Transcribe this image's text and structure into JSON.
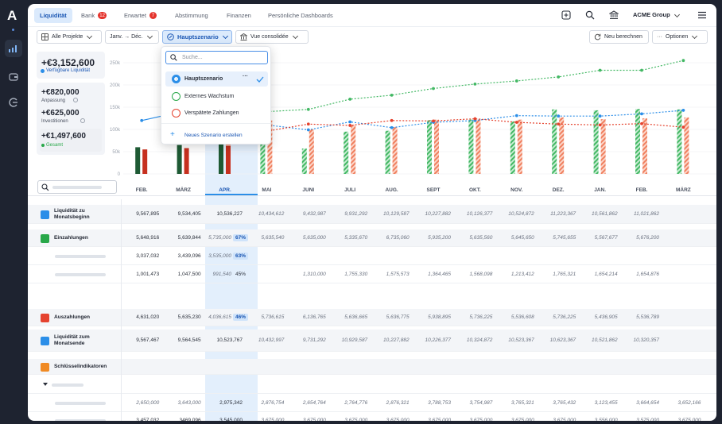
{
  "app": {
    "logo": "A",
    "org": "ACME Group"
  },
  "tabs": [
    {
      "label": "Liquidität"
    },
    {
      "label": "Bank",
      "badge": "12"
    },
    {
      "label": "Erwartet",
      "badge": "7"
    },
    {
      "label": "Abstimmung"
    },
    {
      "label": "Finanzen"
    },
    {
      "label": "Persönliche Dashboards"
    }
  ],
  "filters": {
    "projects": "Alle Projekte",
    "range": "Janv. → Déc.",
    "scenario": "Hauptszenario",
    "view": "Vue consolidée",
    "recalc": "Neu berechnen",
    "options": "Optionen"
  },
  "kpis": {
    "available": {
      "value": "+€3,152,600",
      "label": "Verfügbare Liquidität"
    },
    "adjust": {
      "value": "+€820,000",
      "label": "Anpassung"
    },
    "invest": {
      "value": "+€625,000",
      "label": "Investitionen"
    },
    "total": {
      "value": "+€1,497,600",
      "label": "Gesamt"
    }
  },
  "dropdown": {
    "placeholder": "Suche...",
    "options": [
      "Hauptszenario",
      "Externes Wachstum",
      "Verspätete Zahlungen"
    ],
    "more": "···",
    "create": "Neues Szenario erstellen"
  },
  "chart_data": {
    "type": "bar",
    "yticks": [
      "250k",
      "200k",
      "150k",
      "100k",
      "50k",
      "0"
    ],
    "ylim": [
      0,
      250000
    ],
    "categories": [
      "FEB.",
      "MÄRZ",
      "APR.",
      "MAI",
      "JUNI",
      "JULI",
      "AUG.",
      "SEPT",
      "OKT.",
      "NOV.",
      "DEZ.",
      "JAN.",
      "FEB.",
      "MÄRZ"
    ],
    "current_index": 2,
    "series": [
      {
        "values": [
          60000,
          65000,
          68000,
          70000,
          57000,
          95000,
          97000,
          121000,
          122000,
          118000,
          145000,
          143000,
          146000,
          145000
        ]
      },
      {
        "values": [
          55000,
          58000,
          63000,
          120000,
          100000,
          110000,
          105000,
          122000,
          122000,
          122000,
          127000,
          123000,
          125000,
          127000
        ]
      },
      {
        "values": [
          50000,
          60000,
          65000,
          48000,
          37000,
          48000,
          48000,
          60000,
          58000,
          47000,
          57000,
          40000,
          41000,
          40000
        ]
      },
      {
        "values": [
          null,
          null,
          null,
          140000,
          145000,
          168000,
          177000,
          192000,
          202000,
          209000,
          218000,
          233000,
          233000,
          255000
        ]
      },
      {
        "values": [
          null,
          null,
          null,
          110000,
          99000,
          117000,
          104000,
          116000,
          120000,
          131000,
          130000,
          130000,
          135000,
          143000
        ]
      },
      {
        "values": [
          null,
          null,
          null,
          96000,
          112000,
          109000,
          120000,
          119000,
          124000,
          116000,
          112000,
          110000,
          113000,
          105000
        ]
      },
      {
        "values": [
          120000,
          141000,
          145000,
          null,
          null,
          null,
          null,
          null,
          null,
          null,
          null,
          null,
          null,
          null
        ]
      }
    ]
  },
  "table": {
    "rows": [
      {
        "label": "Liquidität zu Monatsbeginn",
        "icon": "trend-icon",
        "type": "section",
        "values": [
          "9,567,895",
          "9,534,405",
          "10,536,227",
          "10,434,612",
          "9,432,987",
          "9,931,292",
          "10,129,587",
          "10,227,882",
          "10,126,377",
          "10,524,872",
          "11,223,367",
          "10,561,862",
          "11,021,862",
          ""
        ]
      },
      {
        "label": "Einzahlungen",
        "icon": "arrow-in-icon",
        "type": "section",
        "values": [
          "5,648,916",
          "5,639,844",
          "5,735,000",
          "5,635,540",
          "5,635,000",
          "5,335,670",
          "6,735,060",
          "5,935,200",
          "5,635,560",
          "5,645,650",
          "5,745,655",
          "5,567,677",
          "5,676,200",
          ""
        ],
        "pct": "67%"
      },
      {
        "label": "",
        "type": "sub",
        "values": [
          "3,037,032",
          "3,439,096",
          "3,535,000",
          "",
          "",
          "",
          "",
          "",
          "",
          "",
          "",
          "",
          "",
          ""
        ],
        "pct": "63%"
      },
      {
        "label": "",
        "type": "sub",
        "values": [
          "1,001,473",
          "1,047,500",
          "991,540",
          "",
          "1,310,000",
          "1,755,330",
          "1,575,573",
          "1,364,465",
          "1,568,098",
          "1,213,412",
          "1,765,321",
          "1,654,214",
          "1,654,876",
          ""
        ],
        "pct": "45%"
      },
      {
        "label": "Auszahlungen",
        "icon": "arrow-out-icon",
        "type": "section",
        "values": [
          "4,631,020",
          "5,635,230",
          "4,036,615",
          "5,736,615",
          "6,136,765",
          "5,636,665",
          "5,636,775",
          "5,938,895",
          "5,736,225",
          "5,536,608",
          "5,736,225",
          "5,436,905",
          "5,536,789",
          ""
        ],
        "pct": "46%"
      },
      {
        "label": "Liquidität zum Monatsende",
        "icon": "trend-icon",
        "type": "section",
        "values": [
          "9,567,467",
          "9,564,545",
          "10,523,767",
          "10,432,997",
          "9,731,292",
          "10,929,587",
          "10,227,882",
          "10,226,377",
          "10,324,872",
          "10,523,367",
          "10,623,367",
          "10,521,862",
          "10,320,357",
          ""
        ]
      },
      {
        "label": "Schlüsselindikatoren",
        "icon": "star-icon",
        "type": "section",
        "values": []
      },
      {
        "label": "",
        "type": "sub",
        "values": []
      },
      {
        "label": "",
        "type": "sub",
        "values": [
          "2,650,000",
          "3,643,000",
          "2,975,342",
          "2,876,754",
          "2,654,764",
          "2,764,776",
          "2,876,321",
          "3,788,753",
          "3,754,987",
          "3,765,321",
          "3,765,432",
          "3,123,455",
          "3,664,654",
          "3,652,166"
        ]
      },
      {
        "label": "",
        "type": "sub",
        "values": [
          "3,457,032",
          "3469,096",
          "3,545,000",
          "3,675,000",
          "3,675,000",
          "3,675,000",
          "3,675,000",
          "3,675,000",
          "3,675,000",
          "3,675,000",
          "3,675,000",
          "3,556,000",
          "3,575,000",
          "3,675,000"
        ]
      }
    ]
  },
  "colors": {
    "accent": "#1a56b3",
    "green": "#29a84a",
    "red": "#e5432f",
    "blue": "#2b8ee8",
    "darkgreen": "#1e5a34"
  }
}
